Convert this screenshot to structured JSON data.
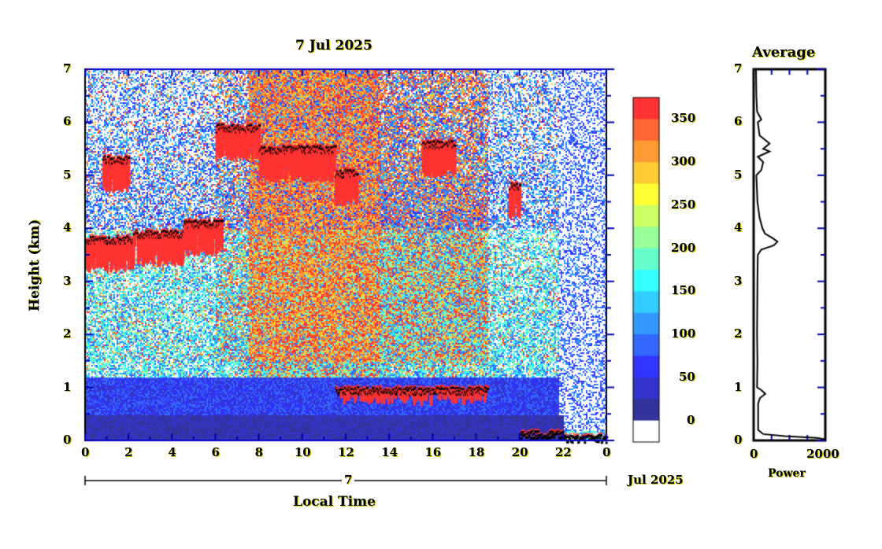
{
  "chart_data": {
    "type": "heatmap",
    "title": "7 Jul 2025",
    "xlabel": "Local Time",
    "ylabel": "Height (km)",
    "xlim": [
      0,
      24
    ],
    "ylim": [
      0,
      7
    ],
    "x_ticks": [
      "0",
      "2",
      "4",
      "6",
      "8",
      "10",
      "12",
      "14",
      "16",
      "18",
      "20",
      "22",
      "0"
    ],
    "y_ticks": [
      "0",
      "1",
      "2",
      "3",
      "4",
      "5",
      "6",
      "7"
    ],
    "date_axis_label": "7",
    "date_axis_suffix": "Jul 2025",
    "colorbar": {
      "ticks": [
        "0",
        "50",
        "100",
        "150",
        "200",
        "250",
        "300",
        "350"
      ],
      "range": [
        -25,
        375
      ],
      "colors": [
        "#ffffff",
        "#333399",
        "#3333cc",
        "#3333ff",
        "#3366ff",
        "#3399ff",
        "#33ccff",
        "#33ffff",
        "#66ffcc",
        "#99ff99",
        "#ccff66",
        "#ffff33",
        "#ffcc33",
        "#ff9933",
        "#ff6633",
        "#ff3333"
      ]
    },
    "cloud_layers": [
      {
        "t0": 0,
        "t1": 2.2,
        "h": 3.8
      },
      {
        "t0": 2.2,
        "t1": 4.5,
        "h": 3.9
      },
      {
        "t0": 4.5,
        "t1": 6.3,
        "h": 4.1
      },
      {
        "t0": 0.8,
        "t1": 2,
        "h": 5.3
      },
      {
        "t0": 6,
        "t1": 8,
        "h": 5.9
      },
      {
        "t0": 8,
        "t1": 11.5,
        "h": 5.5
      },
      {
        "t0": 11.5,
        "t1": 12.5,
        "h": 5.05
      },
      {
        "t0": 15.5,
        "t1": 17,
        "h": 5.6
      },
      {
        "t0": 19.5,
        "t1": 20,
        "h": 4.8
      },
      {
        "t0": 11.5,
        "t1": 18.5,
        "h": 0.95
      },
      {
        "t0": 20,
        "t1": 22,
        "h": 0.12
      },
      {
        "t0": 22,
        "t1": 24,
        "h": 0.05
      }
    ],
    "profile": {
      "title": "Average",
      "xlabel": "Power",
      "x_ticks": [
        "0",
        "2000"
      ],
      "y_ticks": [
        "0",
        "1",
        "2",
        "3",
        "4",
        "5",
        "6",
        "7"
      ],
      "xlim": [
        0,
        2000
      ],
      "ylim": [
        0,
        7
      ],
      "height_km": [
        0.02,
        0.05,
        0.08,
        0.12,
        0.2,
        0.7,
        0.8,
        0.88,
        0.95,
        1.0,
        1.5,
        2,
        3,
        3.5,
        3.6,
        3.68,
        3.75,
        3.82,
        3.9,
        4.0,
        4.2,
        4.5,
        5.0,
        5.1,
        5.25,
        5.35,
        5.45,
        5.5,
        5.6,
        5.75,
        6.0,
        6.05,
        6.2,
        6.5,
        7.0
      ],
      "power": [
        1950,
        1700,
        800,
        200,
        60,
        60,
        110,
        260,
        150,
        30,
        40,
        30,
        40,
        50,
        150,
        500,
        600,
        450,
        250,
        180,
        100,
        40,
        10,
        150,
        200,
        50,
        380,
        200,
        380,
        100,
        50,
        150,
        30,
        10,
        0
      ]
    }
  }
}
